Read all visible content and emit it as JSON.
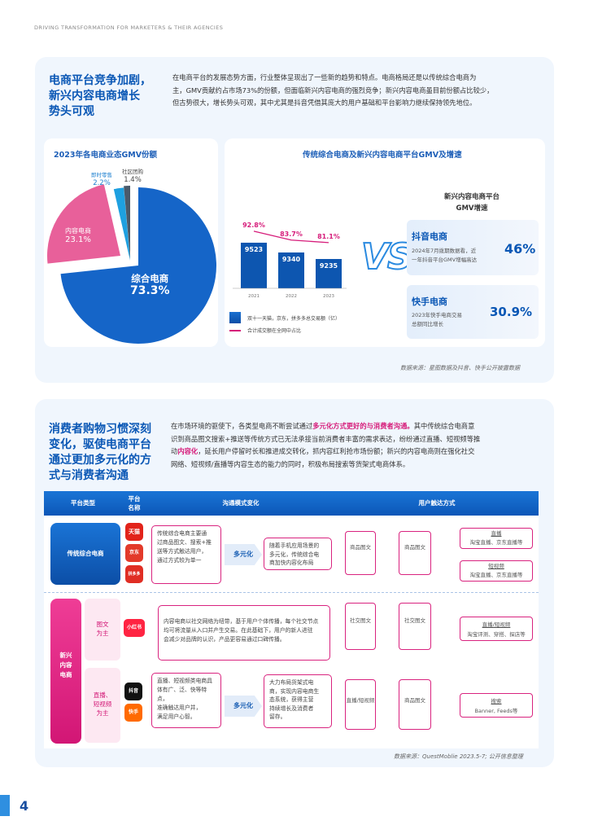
{
  "header": "DRIVING TRANSFORMATION FOR MARKETERS & THEIR AGENCIES",
  "s1": {
    "title_l1": "电商平台竞争加剧，",
    "title_l2": "新兴内容电商增长",
    "title_l3": "势头可观",
    "para": [
      "在电商平台的发展态势方面，行业整体呈现出了一些新的趋势和特点。电商格局还是以传统综合电商为",
      "主，GMV贡献约占市场73%的份额，但面临新兴内容电商的强烈竞争；新兴内容电商虽目前份额占比较少，",
      "但古势很大，增长势头可观，其中尤其是抖音凭借其庞大的用户基础和平台影响力继续保持领先地位。"
    ],
    "pie_title": "2023年各电商业态GMV份额",
    "pie": [
      {
        "name": "综合电商",
        "value": "73.3%",
        "pct": 73.3,
        "color": "#1565c8"
      },
      {
        "name": "内容电商",
        "value": "23.1%",
        "pct": 23.1,
        "color": "#e8609a"
      },
      {
        "name": "即时零售",
        "value": "2.2%",
        "pct": 2.2,
        "color": "#1ea0e0"
      },
      {
        "name": "社区团购",
        "value": "1.4%",
        "pct": 1.4,
        "color": "#4a5a6a"
      }
    ],
    "bar_title": "传统综合电商及新兴内容电商平台GMV及增速",
    "bars": {
      "years": [
        "2021",
        "2022",
        "2023"
      ],
      "values": [
        9523,
        9340,
        9235
      ],
      "labels": [
        "9523",
        "9340",
        "9235"
      ],
      "pcts": [
        "92.8%",
        "83.7%",
        "81.1%"
      ],
      "pctvals": [
        92.8,
        83.7,
        81.1
      ]
    },
    "legend1": "双十一天猫，京东，拼多多总交易额（亿）",
    "legend2": "合计成交额在全网中占比",
    "vs": "VS",
    "growth_title_l1": "新兴内容电商平台",
    "growth_title_l2": "GMV增速",
    "douyin": {
      "name": "抖音电商",
      "desc_l1": "2024年7月拨期数据看，近",
      "desc_l2": "一年抖音平台GMV增幅高达",
      "value": "46%"
    },
    "kuaishou": {
      "name": "快手电商",
      "desc_l1": "2023年快手电商交易",
      "desc_l2": "总额同比增长",
      "value": "30.9%"
    },
    "source": "数据来源：星图数据及抖音、快手公开披露数据"
  },
  "s2": {
    "title_l1": "消费者购物习惯深刻",
    "title_l2": "变化，驱使电商平台",
    "title_l3": "通过更加多元化的方",
    "title_l4": "式与消费者沟通",
    "para_l1a": "在市场环境的驱使下，各类型电商不断尝试通过",
    "para_l1b": "多元化方式更好的与消费者沟通。",
    "para_l1c": "其中传统综合电商意",
    "para_l2": "识到商品图文搜索+推送等传统方式已无法承接当前消费者丰富的需求表达，纷纷通过直播、短视频等推",
    "para_l3a": "动",
    "para_l3b": "内容化",
    "para_l3c": "，延长用户停留时长和推进成交转化，抓内容红利抢市场份额；新兴的内容电商则在强化社交",
    "para_l4": "网络、短视频/直播等内容生态的能力的同时，积极布局搜索等货架式电商体系。",
    "th": [
      "平台类型",
      "平台名称",
      "沟通模式变化",
      "用户触达方式"
    ],
    "th2_l1": "平台",
    "th2_l2": "名称",
    "row1": {
      "type": "传统综合电商",
      "logos": [
        "天猫",
        "京东",
        "拼多多"
      ],
      "desc": [
        "传统综合电商主要通",
        "过商品图文、搜索+推",
        "送等方式触达用户，",
        "通过方式较为单一"
      ],
      "arrow": "多元化",
      "res": [
        "随着手机应用场景的",
        "多元化，传统综合电",
        "商加快内容化布局"
      ],
      "a": "商品图文",
      "b": "商品图文",
      "c1": "直播",
      "c1s": "淘宝直播、京东直播等",
      "c2": "短视频",
      "c2s": "淘宝直播、京东直播等"
    },
    "row2": {
      "group_l1": "新兴",
      "group_l2": "内容",
      "group_l3": "电商",
      "sub1_l1": "图文",
      "sub1_l2": "为主",
      "logo1": "小红书",
      "desc1": [
        "内容电商以社交网络为纽带，基于用户个体传播，每个社交节点",
        "均可将流量从入口并产生交易。在此基础下，用户的新人进驻",
        "会减少对品牌的认识，产品更容易通过口碑传播。"
      ],
      "a1": "社交图文",
      "b1": "社交图文",
      "c1": "直播/短视频",
      "c1s": "淘宝评测、穿搭、探店等",
      "sub2_l1": "直播、",
      "sub2_l2": "短视频",
      "sub2_l3": "为主",
      "logos2": [
        "抖音",
        "快手"
      ],
      "desc2": [
        "直播、短视频类电商具",
        "体有广、泛、快等特点，",
        "准确触达用户并，",
        "满足用户心智。"
      ],
      "arrow2": "多元化",
      "res2": [
        "大力布局货架式电",
        "商，实现内容电商生",
        "态系统，获得主营",
        "持续增长及消费者",
        "留存。"
      ],
      "a2": "直播/短视频",
      "b2": "商品图文",
      "c2": "搜索",
      "c2s": "Banner, Feeds等"
    },
    "source": "数据来源：QuestMoblie 2023.5-7; 公开信息整理"
  },
  "page_number": "4"
}
